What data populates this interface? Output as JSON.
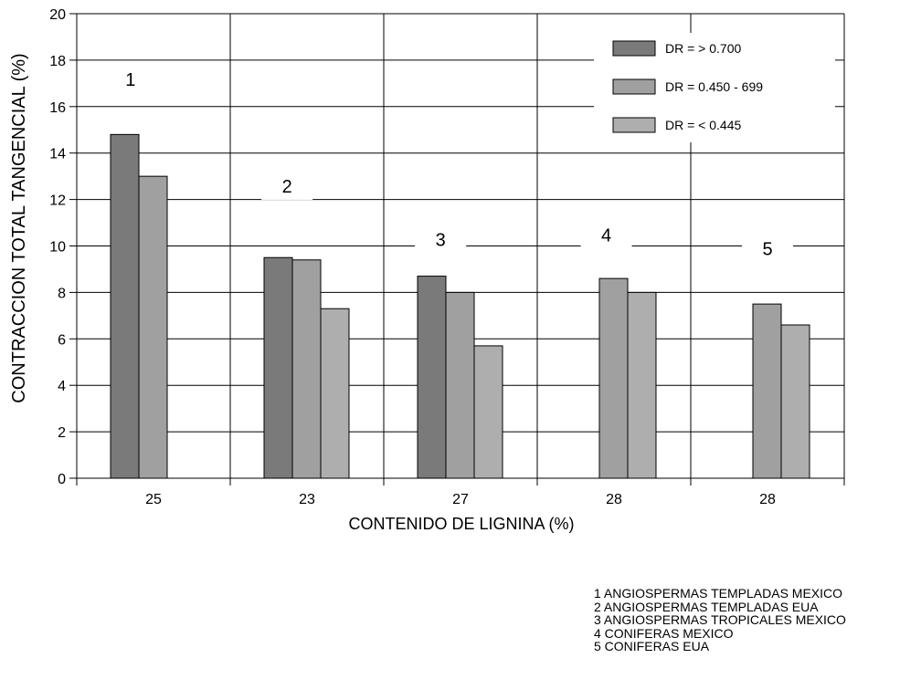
{
  "chart_data": {
    "type": "bar",
    "ylabel": "CONTRACCION TOTAL TANGENCIAL (%)",
    "xlabel": "CONTENIDO DE LIGNINA (%)",
    "ylim": [
      0,
      20
    ],
    "yticks": [
      "0",
      "2",
      "4",
      "6",
      "8",
      "10",
      "12",
      "14",
      "16",
      "18",
      "20"
    ],
    "grid": true,
    "legend_position": "top-right",
    "categories": [
      "25",
      "23",
      "27",
      "28",
      "28"
    ],
    "group_labels": [
      "1",
      "2",
      "3",
      "4",
      "5"
    ],
    "series": [
      {
        "name": "DR = > 0.700",
        "color": "#7a7a7a",
        "values": [
          14.8,
          9.5,
          8.7,
          null,
          null
        ]
      },
      {
        "name": "DR =  0.450 - 699",
        "color": "#a0a0a0",
        "values": [
          13.0,
          9.4,
          8.0,
          8.6,
          7.5
        ]
      },
      {
        "name": "DR = < 0.445",
        "color": "#aeaeae",
        "values": [
          null,
          7.3,
          5.7,
          8.0,
          6.6
        ]
      }
    ]
  },
  "footnotes": [
    "1    ANGIOSPERMAS TEMPLADAS MEXICO",
    "2    ANGIOSPERMAS TEMPLADAS EUA",
    "3    ANGIOSPERMAS TROPICALES MEXICO",
    "4    CONIFERAS MEXICO",
    "5   CONIFERAS EUA"
  ]
}
